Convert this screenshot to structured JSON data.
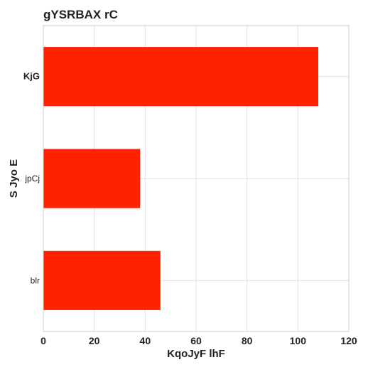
{
  "chart_data": {
    "type": "bar",
    "orientation": "horizontal",
    "title": "gYSRBAX rC",
    "xlabel": "KqoJyF lhF",
    "ylabel": "S  Jyo E",
    "categories": [
      "KjG",
      "jpCj",
      "blr"
    ],
    "values": [
      108,
      38,
      46
    ],
    "xlim": [
      0,
      120
    ],
    "xticks": [
      0,
      20,
      40,
      60,
      80,
      100,
      120
    ],
    "grid": true,
    "legend": "none",
    "colors": {
      "bar": "#ff2200",
      "grid": "#e0e0e0",
      "frame": "#cccccc",
      "text": "#222222"
    }
  }
}
